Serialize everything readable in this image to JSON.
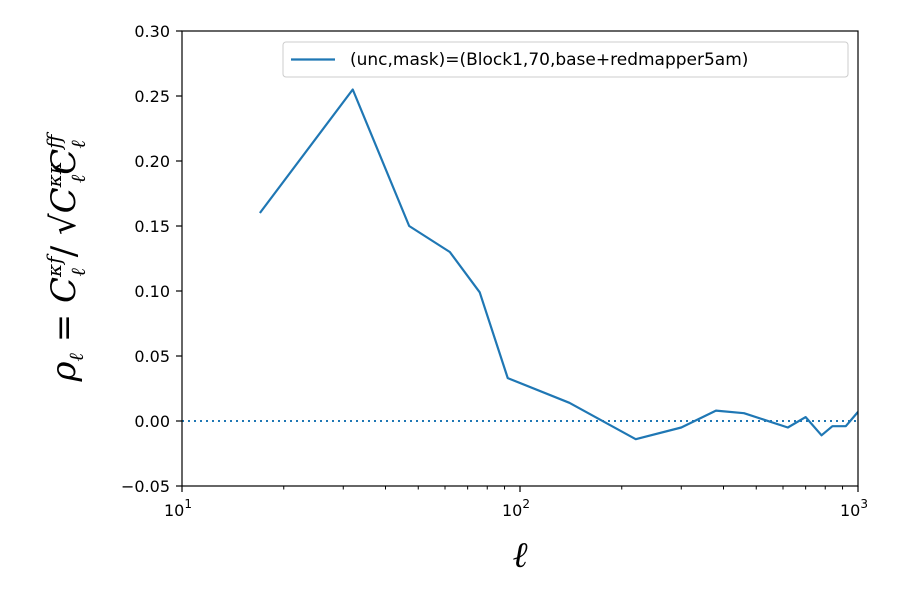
{
  "chart_data": {
    "type": "line",
    "xscale": "log",
    "xlim": [
      10,
      1000
    ],
    "ylim": [
      -0.05,
      0.3
    ],
    "xlabel": "ℓ",
    "ylabel": "ρ_ℓ = C_ℓ^{κf} / √(C_ℓ^{κκ} C_ℓ^{ff})",
    "x_ticks": [
      {
        "value": 10,
        "base": "10",
        "exp": "1"
      },
      {
        "value": 100,
        "base": "10",
        "exp": "2"
      },
      {
        "value": 1000,
        "base": "10",
        "exp": "3"
      }
    ],
    "y_ticks": [
      {
        "value": -0.05,
        "label": "−0.05"
      },
      {
        "value": 0.0,
        "label": "0.00"
      },
      {
        "value": 0.05,
        "label": "0.05"
      },
      {
        "value": 0.1,
        "label": "0.10"
      },
      {
        "value": 0.15,
        "label": "0.15"
      },
      {
        "value": 0.2,
        "label": "0.20"
      },
      {
        "value": 0.25,
        "label": "0.25"
      },
      {
        "value": 0.3,
        "label": "0.30"
      }
    ],
    "series": [
      {
        "name": "(unc,mask)=(Block1,70,base+redmapper5am)",
        "color": "#1f77b4",
        "x": [
          17,
          32,
          47,
          62,
          76,
          92,
          140,
          220,
          300,
          380,
          460,
          620,
          700,
          780,
          840,
          920,
          1000
        ],
        "y": [
          0.16,
          0.255,
          0.15,
          0.13,
          0.099,
          0.033,
          0.014,
          -0.014,
          -0.005,
          0.008,
          0.006,
          -0.005,
          0.003,
          -0.011,
          -0.004,
          -0.004,
          0.007
        ]
      }
    ],
    "reference_line": {
      "y": 0.0,
      "style": "dotted",
      "color": "#1f77b4"
    },
    "legend": {
      "position": "top-right"
    },
    "grid": false
  }
}
